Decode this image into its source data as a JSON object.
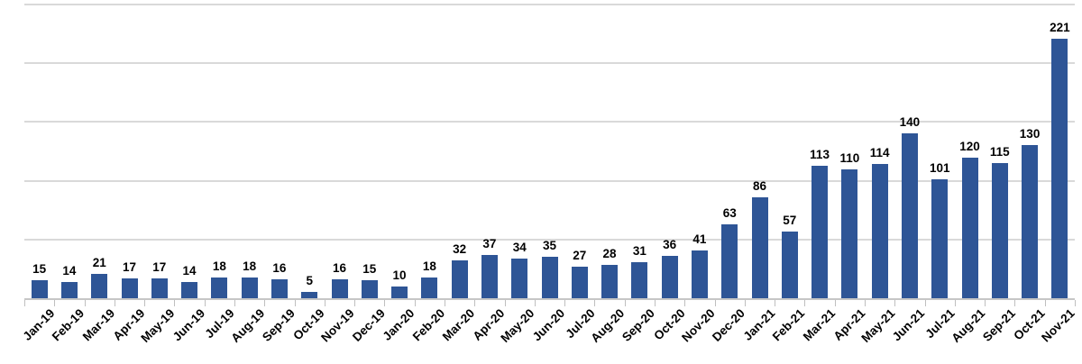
{
  "chart_data": {
    "type": "bar",
    "title": "",
    "xlabel": "",
    "ylabel": "",
    "categories": [
      "Jan-19",
      "Feb-19",
      "Mar-19",
      "Apr-19",
      "May-19",
      "Jun-19",
      "Jul-19",
      "Aug-19",
      "Sep-19",
      "Oct-19",
      "Nov-19",
      "Dec-19",
      "Jan-20",
      "Feb-20",
      "Mar-20",
      "Apr-20",
      "May-20",
      "Jun-20",
      "Jul-20",
      "Aug-20",
      "Sep-20",
      "Oct-20",
      "Nov-20",
      "Dec-20",
      "Jan-21",
      "Feb-21",
      "Mar-21",
      "Apr-21",
      "May-21",
      "Jun-21",
      "Jul-21",
      "Aug-21",
      "Sep-21",
      "Oct-21",
      "Nov-21"
    ],
    "values": [
      15,
      14,
      21,
      17,
      17,
      14,
      18,
      18,
      16,
      5,
      16,
      15,
      10,
      18,
      32,
      37,
      34,
      35,
      27,
      28,
      31,
      36,
      41,
      63,
      86,
      57,
      113,
      110,
      114,
      140,
      101,
      120,
      115,
      130,
      221
    ],
    "ylim": [
      0,
      250
    ],
    "gridline_interval": 50,
    "grid": "horizontal",
    "y_axis_labels": "none",
    "legend": "none",
    "data_labels": "above bars",
    "x_label_rotation_deg": -45,
    "colors": {
      "bar": "#2e5596",
      "gridline": "#d9d9d9",
      "axis_line": "#c6c6c6",
      "tick": "#bfbfbf",
      "label_text": "#000000",
      "background": "#ffffff"
    }
  }
}
